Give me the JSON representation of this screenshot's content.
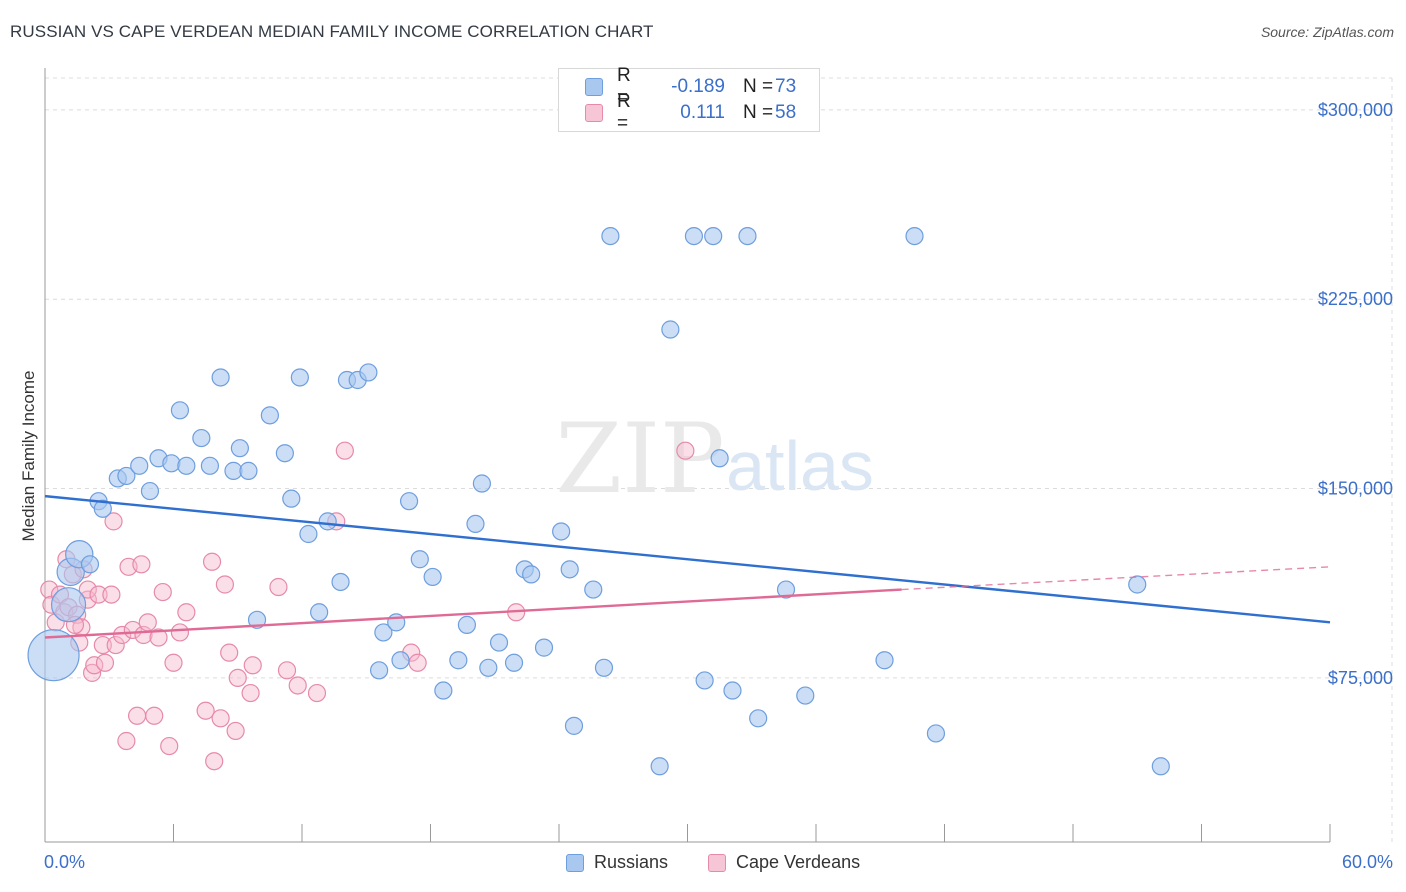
{
  "title": "RUSSIAN VS CAPE VERDEAN MEDIAN FAMILY INCOME CORRELATION CHART",
  "source": "Source: ZipAtlas.com",
  "watermark": {
    "zip": "ZIP",
    "atlas": "atlas"
  },
  "colors": {
    "russians_fill": "#a9c8f0",
    "russians_stroke": "#6e9ede",
    "russians_line": "#2f6fcf",
    "cape_fill": "#f6b8cc",
    "cape_stroke": "#e68aaa",
    "cape_line": "#e06a96",
    "axis_text": "#3b6fc9",
    "grid": "#dcdcdc"
  },
  "legend": {
    "rows": [
      {
        "r_label": "R =",
        "r_value": "-0.189",
        "n_label": "N =",
        "n_value": "73"
      },
      {
        "r_label": "R =",
        "r_value": "0.111",
        "n_label": "N =",
        "n_value": "58"
      }
    ]
  },
  "bottom_legend": {
    "russians": "Russians",
    "cape": "Cape Verdeans"
  },
  "x_axis_labels": {
    "min": "0.0%",
    "max": "60.0%"
  },
  "chart_data": {
    "type": "scatter",
    "title": "RUSSIAN VS CAPE VERDEAN MEDIAN FAMILY INCOME CORRELATION CHART",
    "xlabel": "",
    "ylabel": "Median Family Income",
    "xlim": [
      0,
      60
    ],
    "ylim": [
      10000,
      315000
    ],
    "y_ticks": [
      {
        "value": 75000,
        "label": "$75,000"
      },
      {
        "value": 150000,
        "label": "$150,000"
      },
      {
        "value": 225000,
        "label": "$225,000"
      },
      {
        "value": 300000,
        "label": "$300,000"
      }
    ],
    "x_minor_ticks": [
      0,
      6,
      12,
      18,
      24,
      30,
      36,
      42,
      48,
      54,
      60
    ],
    "series": [
      {
        "name": "Russians",
        "r": -0.189,
        "n": 73,
        "trend": {
          "x0": 0,
          "y0": 147000,
          "x1": 60,
          "y1": 97000
        },
        "points": [
          [
            0.4,
            84000,
            3
          ],
          [
            1.1,
            104000,
            2
          ],
          [
            1.2,
            117000,
            1.6
          ],
          [
            1.6,
            124000,
            1.6
          ],
          [
            2.1,
            120000,
            1
          ],
          [
            2.5,
            145000,
            1
          ],
          [
            2.7,
            142000,
            1
          ],
          [
            3.4,
            154000,
            1
          ],
          [
            3.8,
            155000,
            1
          ],
          [
            4.4,
            159000,
            1
          ],
          [
            4.9,
            149000,
            1
          ],
          [
            5.3,
            162000,
            1
          ],
          [
            5.9,
            160000,
            1
          ],
          [
            6.3,
            181000,
            1
          ],
          [
            6.6,
            159000,
            1
          ],
          [
            7.3,
            170000,
            1
          ],
          [
            7.7,
            159000,
            1
          ],
          [
            8.2,
            194000,
            1
          ],
          [
            8.8,
            157000,
            1
          ],
          [
            9.1,
            166000,
            1
          ],
          [
            9.5,
            157000,
            1
          ],
          [
            9.9,
            98000,
            1
          ],
          [
            10.5,
            179000,
            1
          ],
          [
            11.2,
            164000,
            1
          ],
          [
            11.5,
            146000,
            1
          ],
          [
            11.9,
            194000,
            1
          ],
          [
            12.3,
            132000,
            1
          ],
          [
            12.8,
            101000,
            1
          ],
          [
            13.2,
            137000,
            1
          ],
          [
            13.8,
            113000,
            1
          ],
          [
            14.1,
            193000,
            1
          ],
          [
            14.6,
            193000,
            1
          ],
          [
            15.1,
            196000,
            1
          ],
          [
            15.6,
            78000,
            1
          ],
          [
            15.8,
            93000,
            1
          ],
          [
            16.4,
            97000,
            1
          ],
          [
            16.6,
            82000,
            1
          ],
          [
            17.0,
            145000,
            1
          ],
          [
            17.5,
            122000,
            1
          ],
          [
            18.1,
            115000,
            1
          ],
          [
            18.6,
            70000,
            1
          ],
          [
            19.3,
            82000,
            1
          ],
          [
            19.7,
            96000,
            1
          ],
          [
            20.1,
            136000,
            1
          ],
          [
            20.4,
            152000,
            1
          ],
          [
            20.7,
            79000,
            1
          ],
          [
            21.2,
            89000,
            1
          ],
          [
            21.9,
            81000,
            1
          ],
          [
            22.4,
            118000,
            1
          ],
          [
            22.7,
            116000,
            1
          ],
          [
            23.3,
            87000,
            1
          ],
          [
            24.1,
            133000,
            1
          ],
          [
            24.5,
            118000,
            1
          ],
          [
            24.7,
            56000,
            1
          ],
          [
            25.6,
            110000,
            1
          ],
          [
            26.1,
            79000,
            1
          ],
          [
            26.4,
            250000,
            1
          ],
          [
            28.7,
            40000,
            1
          ],
          [
            29.2,
            213000,
            1
          ],
          [
            30.3,
            250000,
            1
          ],
          [
            31.2,
            250000,
            1
          ],
          [
            30.8,
            74000,
            1
          ],
          [
            31.5,
            162000,
            1
          ],
          [
            32.1,
            70000,
            1
          ],
          [
            32.8,
            250000,
            1
          ],
          [
            33.3,
            59000,
            1
          ],
          [
            34.6,
            110000,
            1
          ],
          [
            35.5,
            68000,
            1
          ],
          [
            39.2,
            82000,
            1
          ],
          [
            40.6,
            250000,
            1
          ],
          [
            41.6,
            53000,
            1
          ],
          [
            51.0,
            112000,
            1
          ],
          [
            52.1,
            40000,
            1
          ]
        ]
      },
      {
        "name": "Cape Verdeans",
        "r": 0.111,
        "n": 58,
        "trend": {
          "x0": 0,
          "y0": 91000,
          "x1": 40,
          "y1": 110000,
          "dash_x1": 60,
          "dash_y1": 119000
        },
        "points": [
          [
            0.2,
            110000,
            1
          ],
          [
            0.3,
            104000,
            1
          ],
          [
            0.5,
            97000,
            1
          ],
          [
            0.7,
            108000,
            1
          ],
          [
            0.9,
            101000,
            1
          ],
          [
            1.0,
            122000,
            1
          ],
          [
            1.1,
            103000,
            1
          ],
          [
            1.3,
            116000,
            1
          ],
          [
            1.5,
            100000,
            1
          ],
          [
            1.6,
            89000,
            1
          ],
          [
            1.7,
            95000,
            1
          ],
          [
            1.8,
            118000,
            1
          ],
          [
            2.0,
            106000,
            1
          ],
          [
            2.0,
            110000,
            1
          ],
          [
            2.2,
            77000,
            1
          ],
          [
            2.3,
            80000,
            1
          ],
          [
            2.5,
            108000,
            1
          ],
          [
            2.7,
            88000,
            1
          ],
          [
            2.8,
            81000,
            1
          ],
          [
            3.1,
            108000,
            1
          ],
          [
            3.2,
            137000,
            1
          ],
          [
            3.3,
            88000,
            1
          ],
          [
            3.6,
            92000,
            1
          ],
          [
            3.8,
            50000,
            1
          ],
          [
            3.9,
            119000,
            1
          ],
          [
            4.1,
            94000,
            1
          ],
          [
            4.3,
            60000,
            1
          ],
          [
            4.5,
            120000,
            1
          ],
          [
            4.6,
            92000,
            1
          ],
          [
            4.8,
            97000,
            1
          ],
          [
            5.1,
            60000,
            1
          ],
          [
            5.3,
            91000,
            1
          ],
          [
            5.5,
            109000,
            1
          ],
          [
            5.8,
            48000,
            1
          ],
          [
            6.0,
            81000,
            1
          ],
          [
            6.3,
            93000,
            1
          ],
          [
            6.6,
            101000,
            1
          ],
          [
            7.5,
            62000,
            1
          ],
          [
            7.8,
            121000,
            1
          ],
          [
            7.9,
            42000,
            1
          ],
          [
            8.2,
            59000,
            1
          ],
          [
            8.4,
            112000,
            1
          ],
          [
            8.6,
            85000,
            1
          ],
          [
            8.9,
            54000,
            1
          ],
          [
            9.0,
            75000,
            1
          ],
          [
            9.6,
            69000,
            1
          ],
          [
            9.7,
            80000,
            1
          ],
          [
            10.9,
            111000,
            1
          ],
          [
            11.3,
            78000,
            1
          ],
          [
            11.8,
            72000,
            1
          ],
          [
            12.7,
            69000,
            1
          ],
          [
            13.6,
            137000,
            1
          ],
          [
            14.0,
            165000,
            1
          ],
          [
            17.1,
            85000,
            1
          ],
          [
            17.4,
            81000,
            1
          ],
          [
            22.0,
            101000,
            1
          ],
          [
            29.9,
            165000,
            1
          ],
          [
            1.4,
            96000,
            1
          ]
        ]
      }
    ]
  }
}
